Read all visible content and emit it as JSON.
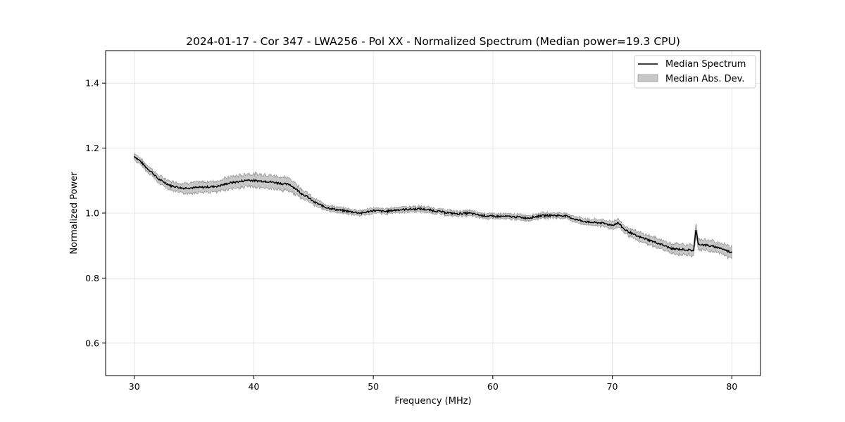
{
  "chart_data": {
    "type": "line",
    "title": "2024-01-17 - Cor 347 - LWA256 - Pol XX - Normalized Spectrum (Median power=19.3 CPU)",
    "xlabel": "Frequency (MHz)",
    "ylabel": "Normalized Power",
    "xlim": [
      27.6,
      82.4
    ],
    "ylim": [
      0.5,
      1.5
    ],
    "xticks": [
      30,
      40,
      50,
      60,
      70,
      80
    ],
    "yticks": [
      0.6,
      0.8,
      1.0,
      1.2,
      1.4
    ],
    "xtick_labels": [
      "30",
      "40",
      "50",
      "60",
      "70",
      "80"
    ],
    "ytick_labels": [
      "0.6",
      "0.8",
      "1.0",
      "1.2",
      "1.4"
    ],
    "grid": true,
    "legend": {
      "placement": "top-right",
      "entries": [
        "Median Spectrum",
        "Median Abs. Dev."
      ]
    },
    "colors": {
      "line": "#000000",
      "band": "#c8c8c8",
      "band_edge": "#9a9a9a",
      "grid": "#e0e0e0"
    },
    "series": [
      {
        "name": "Median Spectrum",
        "x": [
          30,
          30.5,
          31,
          31.5,
          32,
          32.5,
          33,
          34,
          35,
          36,
          37,
          38,
          39,
          39.5,
          40,
          41,
          42,
          42.5,
          43,
          43.5,
          44,
          44.5,
          45,
          46,
          47,
          48,
          49,
          50,
          51,
          52,
          53,
          54,
          55,
          56,
          57,
          58,
          59,
          60,
          61,
          62,
          63,
          64,
          65,
          66,
          67,
          68,
          69,
          70,
          70.5,
          71,
          72,
          73,
          74,
          75,
          76,
          76.8,
          77,
          77.2,
          78,
          79,
          80
        ],
        "y": [
          1.175,
          1.16,
          1.14,
          1.125,
          1.105,
          1.095,
          1.085,
          1.077,
          1.078,
          1.08,
          1.083,
          1.093,
          1.098,
          1.102,
          1.1,
          1.098,
          1.093,
          1.09,
          1.088,
          1.075,
          1.06,
          1.05,
          1.035,
          1.018,
          1.01,
          1.005,
          1.0,
          1.008,
          1.005,
          1.01,
          1.012,
          1.013,
          1.008,
          1.002,
          0.998,
          1.0,
          0.993,
          0.99,
          0.99,
          0.988,
          0.985,
          0.992,
          0.993,
          0.992,
          0.98,
          0.972,
          0.97,
          0.963,
          0.97,
          0.95,
          0.93,
          0.918,
          0.905,
          0.89,
          0.888,
          0.885,
          0.948,
          0.905,
          0.9,
          0.893,
          0.878
        ],
        "mad": [
          0.01,
          0.01,
          0.01,
          0.01,
          0.012,
          0.012,
          0.013,
          0.015,
          0.016,
          0.016,
          0.017,
          0.018,
          0.019,
          0.02,
          0.02,
          0.02,
          0.02,
          0.02,
          0.019,
          0.017,
          0.014,
          0.012,
          0.01,
          0.009,
          0.008,
          0.008,
          0.008,
          0.008,
          0.008,
          0.008,
          0.008,
          0.008,
          0.008,
          0.008,
          0.008,
          0.008,
          0.008,
          0.008,
          0.008,
          0.008,
          0.008,
          0.008,
          0.008,
          0.008,
          0.009,
          0.009,
          0.01,
          0.011,
          0.012,
          0.012,
          0.013,
          0.014,
          0.014,
          0.015,
          0.015,
          0.016,
          0.02,
          0.016,
          0.016,
          0.016,
          0.018
        ]
      }
    ]
  }
}
